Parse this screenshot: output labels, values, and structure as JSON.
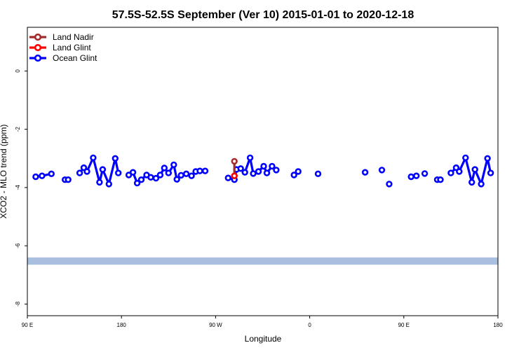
{
  "chart_data": {
    "type": "line",
    "title": "57.5S-52.5S September (Ver 10)   2015-01-01 to 2020-12-18",
    "xlabel": "Longitude",
    "ylabel": "XCO2 - MLO trend (ppm)",
    "xlim": [
      90,
      540
    ],
    "ylim": [
      -8.4,
      1.5
    ],
    "x_ticks": [
      {
        "value": 90,
        "label": "90 E"
      },
      {
        "value": 180,
        "label": "180"
      },
      {
        "value": 270,
        "label": "90 W"
      },
      {
        "value": 360,
        "label": "0"
      },
      {
        "value": 450,
        "label": "90 E"
      },
      {
        "value": 540,
        "label": "180"
      }
    ],
    "y_ticks": [
      {
        "value": 0,
        "label": "0"
      },
      {
        "value": -2,
        "label": "-2"
      },
      {
        "value": -4,
        "label": "-4"
      },
      {
        "value": -6,
        "label": "-6"
      },
      {
        "value": -8,
        "label": "-8"
      }
    ],
    "grid": false,
    "legend_position": "top-left",
    "land_band": {
      "y": [
        -6.65,
        -6.4
      ],
      "color": "#a9bfe0"
    },
    "series": [
      {
        "name": "Land Nadir",
        "color": "#a52a2a",
        "points": [
          [
            288,
            -3.1
          ],
          [
            288,
            -3.6
          ]
        ]
      },
      {
        "name": "Land Glint",
        "color": "#ff0000",
        "points": [
          [
            288,
            -3.6
          ]
        ]
      },
      {
        "name": "Ocean Glint",
        "color": "#0000ff",
        "segments": [
          [
            [
              98,
              -3.63
            ],
            [
              104,
              -3.6
            ],
            [
              113,
              -3.53
            ]
          ],
          [
            [
              126,
              -3.73
            ],
            [
              129,
              -3.73
            ]
          ],
          [
            [
              140,
              -3.5
            ],
            [
              144,
              -3.32
            ],
            [
              147,
              -3.45
            ],
            [
              153,
              -2.98
            ],
            [
              159,
              -3.82
            ],
            [
              162,
              -3.38
            ],
            [
              168,
              -3.88
            ],
            [
              174,
              -3.0
            ],
            [
              177,
              -3.5
            ]
          ],
          [
            [
              187,
              -3.57
            ],
            [
              191,
              -3.48
            ],
            [
              195,
              -3.85
            ],
            [
              199,
              -3.73
            ],
            [
              204,
              -3.57
            ],
            [
              208,
              -3.65
            ],
            [
              213,
              -3.68
            ],
            [
              217,
              -3.57
            ],
            [
              221,
              -3.33
            ],
            [
              225,
              -3.5
            ],
            [
              230,
              -3.22
            ],
            [
              233,
              -3.72
            ],
            [
              237,
              -3.58
            ],
            [
              242,
              -3.53
            ],
            [
              247,
              -3.6
            ],
            [
              251,
              -3.45
            ],
            [
              255,
              -3.43
            ],
            [
              260,
              -3.43
            ]
          ],
          [
            [
              282,
              -3.67
            ],
            [
              288,
              -3.73
            ],
            [
              290,
              -3.38
            ],
            [
              294,
              -3.35
            ],
            [
              298,
              -3.48
            ],
            [
              303,
              -2.98
            ],
            [
              306,
              -3.52
            ],
            [
              311,
              -3.45
            ],
            [
              316,
              -3.27
            ],
            [
              319,
              -3.5
            ],
            [
              324,
              -3.27
            ],
            [
              328,
              -3.4
            ]
          ],
          [
            [
              345,
              -3.57
            ],
            [
              349,
              -3.45
            ]
          ],
          [
            [
              368,
              -3.53
            ]
          ],
          [
            [
              413,
              -3.48
            ]
          ],
          [
            [
              429,
              -3.4
            ]
          ],
          [
            [
              436,
              -3.88
            ]
          ],
          [
            [
              457,
              -3.63
            ],
            [
              462,
              -3.6
            ]
          ],
          [
            [
              470,
              -3.52
            ]
          ],
          [
            [
              482,
              -3.73
            ],
            [
              485,
              -3.73
            ]
          ],
          [
            [
              495,
              -3.5
            ],
            [
              500,
              -3.32
            ],
            [
              503,
              -3.45
            ],
            [
              509,
              -2.98
            ],
            [
              515,
              -3.82
            ],
            [
              518,
              -3.38
            ],
            [
              524,
              -3.88
            ],
            [
              530,
              -3.0
            ],
            [
              533,
              -3.5
            ]
          ]
        ]
      }
    ]
  }
}
